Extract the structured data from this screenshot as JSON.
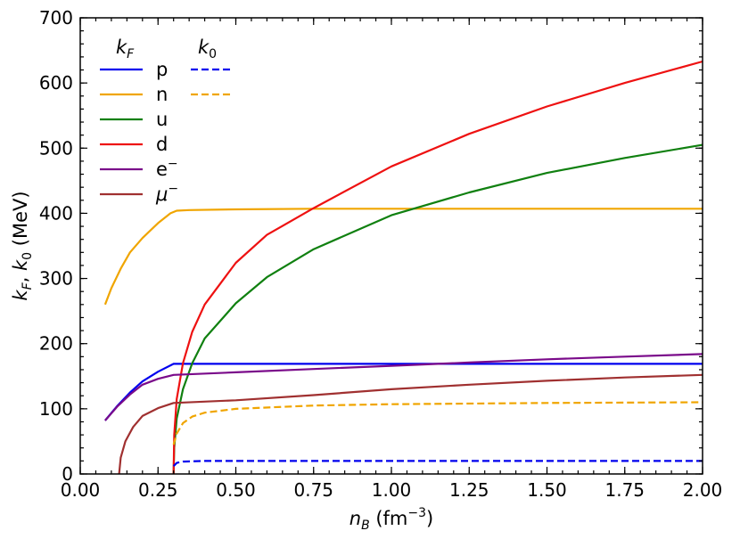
{
  "chart_data": {
    "type": "line",
    "xlabel": {
      "base": "n",
      "sub": "B",
      "unit_open": " (fm",
      "sup": "−3",
      "unit_close": ")"
    },
    "ylabel": {
      "k": "k",
      "sub1": "F",
      "sep": ", ",
      "k0": "k",
      "sub2": "0",
      "unit": " (MeV)"
    },
    "xlim": [
      0.0,
      2.0
    ],
    "ylim": [
      0,
      700
    ],
    "xticks": [
      0.0,
      0.25,
      0.5,
      0.75,
      1.0,
      1.25,
      1.5,
      1.75,
      2.0
    ],
    "xtick_labels": [
      "0.00",
      "0.25",
      "0.50",
      "0.75",
      "1.00",
      "1.25",
      "1.50",
      "1.75",
      "2.00"
    ],
    "yticks": [
      0,
      100,
      200,
      300,
      400,
      500,
      600,
      700
    ],
    "ytick_labels": [
      "0",
      "100",
      "200",
      "300",
      "400",
      "500",
      "600",
      "700"
    ],
    "legend": {
      "position": "top-left",
      "header_kF": {
        "base": "k",
        "sub": "F"
      },
      "header_k0": {
        "base": "k",
        "sub": "0"
      },
      "entries": [
        "p",
        "n",
        "u",
        "d",
        "e",
        "μ"
      ],
      "superscripts": [
        "",
        "",
        "",
        "",
        "−",
        "−"
      ]
    },
    "series": [
      {
        "name": "p",
        "kind": "kF",
        "color": "#0000ee",
        "dash": "solid",
        "points": [
          [
            0.08,
            82
          ],
          [
            0.12,
            105
          ],
          [
            0.16,
            125
          ],
          [
            0.2,
            142
          ],
          [
            0.25,
            157
          ],
          [
            0.3,
            169
          ],
          [
            0.4,
            169
          ],
          [
            0.6,
            169
          ],
          [
            0.8,
            169
          ],
          [
            1.0,
            169
          ],
          [
            1.2,
            169
          ],
          [
            1.4,
            169
          ],
          [
            1.6,
            169
          ],
          [
            1.8,
            169
          ],
          [
            2.0,
            169
          ]
        ]
      },
      {
        "name": "n",
        "kind": "kF",
        "color": "#f0a500",
        "dash": "solid",
        "points": [
          [
            0.08,
            260
          ],
          [
            0.1,
            285
          ],
          [
            0.13,
            315
          ],
          [
            0.16,
            340
          ],
          [
            0.2,
            362
          ],
          [
            0.25,
            385
          ],
          [
            0.29,
            400
          ],
          [
            0.31,
            404
          ],
          [
            0.35,
            405
          ],
          [
            0.5,
            406
          ],
          [
            0.75,
            407
          ],
          [
            1.0,
            407
          ],
          [
            1.25,
            407
          ],
          [
            1.5,
            407
          ],
          [
            1.75,
            407
          ],
          [
            2.0,
            407
          ]
        ]
      },
      {
        "name": "u",
        "kind": "kF",
        "color": "#108010",
        "dash": "solid",
        "points": [
          [
            0.3,
            0
          ],
          [
            0.302,
            40
          ],
          [
            0.31,
            85
          ],
          [
            0.33,
            130
          ],
          [
            0.36,
            170
          ],
          [
            0.4,
            208
          ],
          [
            0.5,
            262
          ],
          [
            0.6,
            302
          ],
          [
            0.75,
            345
          ],
          [
            1.0,
            397
          ],
          [
            1.25,
            432
          ],
          [
            1.5,
            462
          ],
          [
            1.75,
            485
          ],
          [
            2.0,
            505
          ]
        ]
      },
      {
        "name": "d",
        "kind": "kF",
        "color": "#ee1111",
        "dash": "solid",
        "points": [
          [
            0.3,
            0
          ],
          [
            0.302,
            60
          ],
          [
            0.31,
            115
          ],
          [
            0.33,
            170
          ],
          [
            0.36,
            218
          ],
          [
            0.4,
            260
          ],
          [
            0.5,
            324
          ],
          [
            0.6,
            367
          ],
          [
            0.75,
            408
          ],
          [
            1.0,
            472
          ],
          [
            1.25,
            522
          ],
          [
            1.5,
            564
          ],
          [
            1.75,
            600
          ],
          [
            2.0,
            633
          ]
        ]
      },
      {
        "name": "e",
        "kind": "kF",
        "color": "#7a0a8a",
        "dash": "solid",
        "points": [
          [
            0.08,
            82
          ],
          [
            0.12,
            104
          ],
          [
            0.16,
            122
          ],
          [
            0.2,
            137
          ],
          [
            0.25,
            146
          ],
          [
            0.3,
            152
          ],
          [
            0.5,
            156
          ],
          [
            0.75,
            161
          ],
          [
            1.0,
            166
          ],
          [
            1.25,
            171
          ],
          [
            1.5,
            176
          ],
          [
            1.75,
            180
          ],
          [
            2.0,
            184
          ]
        ]
      },
      {
        "name": "μ",
        "kind": "kF",
        "color": "#a03030",
        "dash": "solid",
        "points": [
          [
            0.125,
            0
          ],
          [
            0.13,
            25
          ],
          [
            0.145,
            50
          ],
          [
            0.17,
            72
          ],
          [
            0.2,
            89
          ],
          [
            0.25,
            101
          ],
          [
            0.3,
            109
          ],
          [
            0.5,
            113
          ],
          [
            0.75,
            121
          ],
          [
            1.0,
            130
          ],
          [
            1.25,
            137
          ],
          [
            1.5,
            143
          ],
          [
            1.75,
            148
          ],
          [
            2.0,
            152
          ]
        ]
      },
      {
        "name": "p",
        "kind": "k0",
        "color": "#0000ee",
        "dash": "dashed",
        "points": [
          [
            0.3,
            12
          ],
          [
            0.31,
            17
          ],
          [
            0.33,
            19
          ],
          [
            0.4,
            20
          ],
          [
            0.6,
            20
          ],
          [
            1.0,
            20
          ],
          [
            1.5,
            20
          ],
          [
            2.0,
            20
          ]
        ]
      },
      {
        "name": "n",
        "kind": "k0",
        "color": "#f0a500",
        "dash": "dashed",
        "points": [
          [
            0.3,
            45
          ],
          [
            0.31,
            62
          ],
          [
            0.33,
            78
          ],
          [
            0.36,
            88
          ],
          [
            0.4,
            94
          ],
          [
            0.5,
            100
          ],
          [
            0.75,
            105
          ],
          [
            1.0,
            107
          ],
          [
            1.5,
            109
          ],
          [
            2.0,
            110
          ]
        ]
      }
    ]
  }
}
